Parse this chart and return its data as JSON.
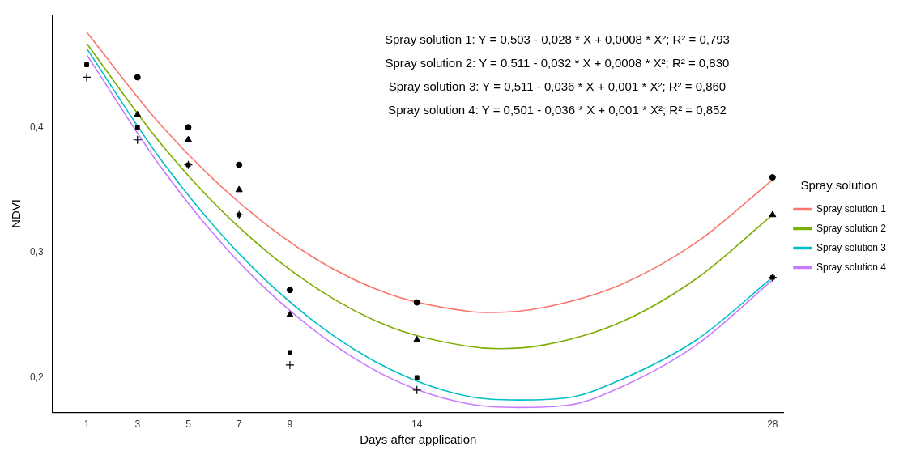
{
  "chart_data": {
    "type": "scatter",
    "xlabel": "Days after application",
    "ylabel": "NDVI",
    "legend_title": "Spray solution",
    "legend": "right",
    "grid": false,
    "xlim": [
      -0.35,
      28.45
    ],
    "xticks": [
      1,
      3,
      5,
      7,
      9,
      14,
      28
    ],
    "ylim": [
      0.172,
      0.49
    ],
    "yticks": [
      {
        "value": 0.2,
        "label": "0,2"
      },
      {
        "value": 0.3,
        "label": "0,3"
      },
      {
        "value": 0.4,
        "label": "0,4"
      }
    ],
    "annotations": [
      "Spray solution 1: Y = 0,503 - 0,028 * X + 0,0008 * X²; R² = 0,793",
      "Spray solution 2: Y = 0,511 - 0,032 * X + 0,0008 * X²; R² = 0,830",
      "Spray solution 3: Y = 0,511 - 0,036 * X + 0,001 * X²; R² = 0,860",
      "Spray solution 4: Y = 0,501 - 0,036 * X + 0,001 * X²; R² = 0,852"
    ],
    "series": [
      {
        "type": "line",
        "name": "Spray solution 1",
        "color": "#f8766d",
        "marker": "none",
        "x": [
          1,
          4,
          7,
          10,
          13,
          16,
          17,
          19,
          22,
          25,
          28
        ],
        "values": [
          0.476,
          0.4,
          0.34,
          0.295,
          0.266,
          0.253,
          0.252,
          0.256,
          0.274,
          0.308,
          0.358
        ]
      },
      {
        "type": "line",
        "name": "Spray solution 2",
        "color": "#7cae00",
        "marker": "none",
        "x": [
          1,
          4,
          7,
          10,
          13,
          16,
          17.25,
          19,
          22,
          25,
          28
        ],
        "values": [
          0.467,
          0.385,
          0.32,
          0.272,
          0.24,
          0.225,
          0.223,
          0.226,
          0.244,
          0.279,
          0.33
        ]
      },
      {
        "type": "line",
        "name": "Spray solution 3",
        "color": "#00bfc4",
        "marker": "none",
        "x": [
          1,
          4,
          7,
          10,
          13,
          16,
          18,
          20,
          22,
          25,
          28
        ],
        "values": [
          0.463,
          0.372,
          0.299,
          0.244,
          0.206,
          0.185,
          0.182,
          0.184,
          0.198,
          0.23,
          0.28
        ]
      },
      {
        "type": "line",
        "name": "Spray solution 4",
        "color": "#c77cff",
        "marker": "none",
        "x": [
          1,
          4,
          7,
          10,
          13,
          16,
          18,
          20,
          22,
          25,
          28
        ],
        "values": [
          0.458,
          0.366,
          0.292,
          0.237,
          0.199,
          0.179,
          0.176,
          0.178,
          0.192,
          0.226,
          0.278
        ]
      },
      {
        "color": "#000000",
        "marker": "circle",
        "x": [
          3,
          5,
          7,
          9,
          14,
          28
        ],
        "values": [
          0.44,
          0.4,
          0.37,
          0.27,
          0.26,
          0.36
        ]
      },
      {
        "color": "#000000",
        "marker": "triangle",
        "x": [
          3,
          5,
          7,
          9,
          14,
          28
        ],
        "values": [
          0.41,
          0.39,
          0.35,
          0.25,
          0.23,
          0.33
        ]
      },
      {
        "color": "#000000",
        "marker": "square",
        "x": [
          1,
          3,
          5,
          7,
          9,
          14,
          28
        ],
        "values": [
          0.45,
          0.4,
          0.37,
          0.33,
          0.22,
          0.2,
          0.28
        ]
      },
      {
        "color": "#000000",
        "marker": "cross",
        "x": [
          1,
          3,
          5,
          7,
          9,
          14,
          28
        ],
        "values": [
          0.44,
          0.39,
          0.37,
          0.33,
          0.21,
          0.19,
          0.28
        ]
      }
    ]
  }
}
